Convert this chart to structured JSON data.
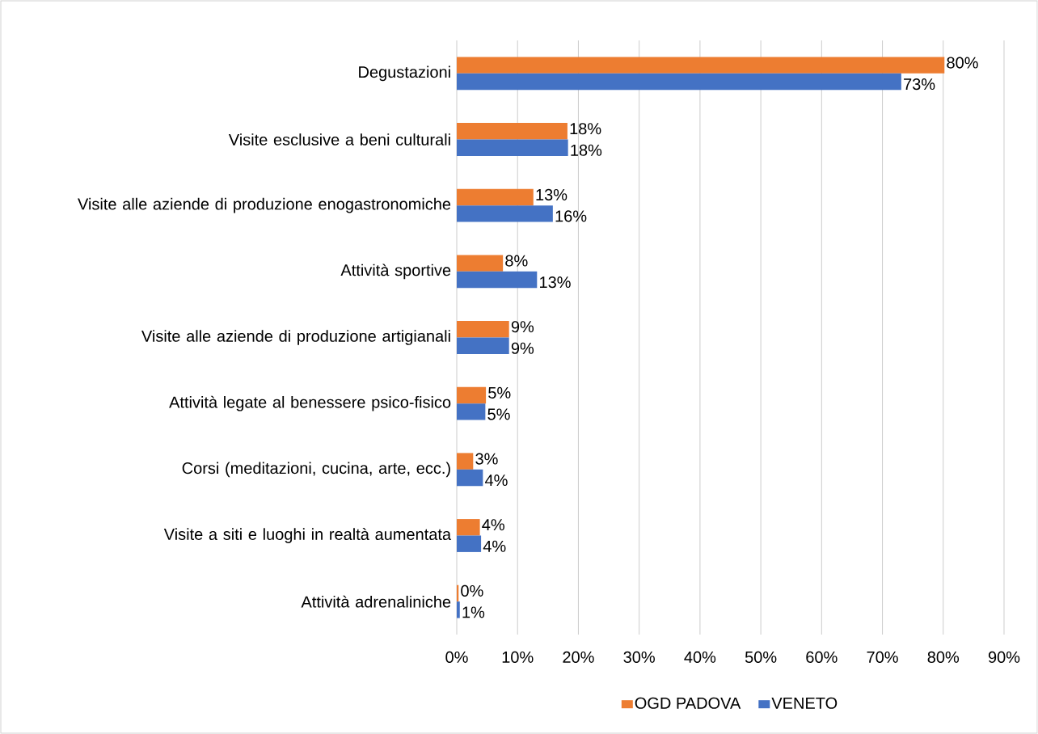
{
  "chart_data": {
    "type": "bar",
    "orientation": "horizontal",
    "categories": [
      "Degustazioni",
      "Visite esclusive a beni culturali",
      "Visite alle aziende di produzione enogastronomiche",
      "Attività sportive",
      "Visite alle aziende di produzione artigianali",
      "Attività legate al benessere psico-fisico",
      "Corsi (meditazioni, cucina, arte, ecc.)",
      "Visite a siti e luoghi in realtà aumentata",
      "Attività adrenaliniche"
    ],
    "series": [
      {
        "name": "OGD PADOVA",
        "color": "#ed7d31",
        "values": [
          80.2,
          18.2,
          12.6,
          7.6,
          8.6,
          4.8,
          2.7,
          3.8,
          0.3
        ],
        "value_labels": [
          "80%",
          "18%",
          "13%",
          "8%",
          "9%",
          "5%",
          "3%",
          "4%",
          "0%"
        ]
      },
      {
        "name": "VENETO",
        "color": "#4472c4",
        "values": [
          73.1,
          18.3,
          15.8,
          13.2,
          8.6,
          4.7,
          4.3,
          4.0,
          0.5
        ],
        "value_labels": [
          "73%",
          "18%",
          "16%",
          "13%",
          "9%",
          "5%",
          "4%",
          "4%",
          "1%"
        ]
      }
    ],
    "xlim": [
      0,
      90
    ],
    "xticks": [
      {
        "value": 0,
        "label": "0%"
      },
      {
        "value": 10,
        "label": "10%"
      },
      {
        "value": 20,
        "label": "20%"
      },
      {
        "value": 30,
        "label": "30%"
      },
      {
        "value": 40,
        "label": "40%"
      },
      {
        "value": 50,
        "label": "50%"
      },
      {
        "value": 60,
        "label": "60%"
      },
      {
        "value": 70,
        "label": "70%"
      },
      {
        "value": 80,
        "label": "80%"
      },
      {
        "value": 90,
        "label": "90%"
      }
    ],
    "grid": "x",
    "legend": "bottom"
  }
}
